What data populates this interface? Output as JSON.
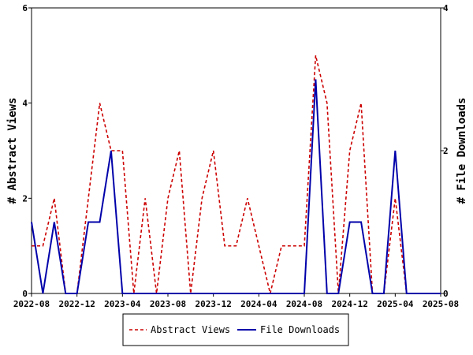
{
  "chart_data": {
    "type": "line",
    "x": [
      "2022-08",
      "2022-09",
      "2022-10",
      "2022-11",
      "2022-12",
      "2023-01",
      "2023-02",
      "2023-03",
      "2023-04",
      "2023-05",
      "2023-06",
      "2023-07",
      "2023-08",
      "2023-09",
      "2023-10",
      "2023-11",
      "2023-12",
      "2024-01",
      "2024-02",
      "2024-03",
      "2024-04",
      "2024-05",
      "2024-06",
      "2024-07",
      "2024-08",
      "2024-09",
      "2024-10",
      "2024-11",
      "2024-12",
      "2025-01",
      "2025-02",
      "2025-03",
      "2025-04",
      "2025-05",
      "2025-06",
      "2025-07",
      "2025-08"
    ],
    "series": [
      {
        "name": "Abstract Views",
        "axis": "left",
        "color": "#cc0000",
        "style": "dashed",
        "values": [
          1,
          1,
          2,
          0,
          0,
          2,
          4,
          3,
          3,
          0,
          2,
          0,
          2,
          3,
          0,
          2,
          3,
          1,
          1,
          2,
          1,
          0,
          1,
          1,
          1,
          5,
          4,
          0,
          3,
          4,
          0,
          0,
          2,
          0,
          0,
          0,
          0
        ]
      },
      {
        "name": "File Downloads",
        "axis": "right",
        "color": "#0000aa",
        "style": "solid",
        "values": [
          1,
          0,
          1,
          0,
          0,
          1,
          1,
          2,
          0,
          0,
          0,
          0,
          0,
          0,
          0,
          0,
          0,
          0,
          0,
          0,
          0,
          0,
          0,
          0,
          0,
          3,
          0,
          0,
          1,
          1,
          0,
          0,
          2,
          0,
          0,
          0,
          0
        ]
      }
    ],
    "xlabel": "",
    "ylabel": "# Abstract Views",
    "y2label": "# File Downloads",
    "ylim": [
      0,
      6
    ],
    "y2lim": [
      0,
      4
    ],
    "yticks": [
      "0",
      "2",
      "4",
      "6"
    ],
    "y2ticks": [
      "0",
      "2",
      "4"
    ],
    "xticks": [
      "2022-08",
      "2022-12",
      "2023-04",
      "2023-08",
      "2023-12",
      "2024-04",
      "2024-08",
      "2024-12",
      "2025-04",
      "2025-08"
    ],
    "grid": false,
    "legend": "bottom-center"
  }
}
